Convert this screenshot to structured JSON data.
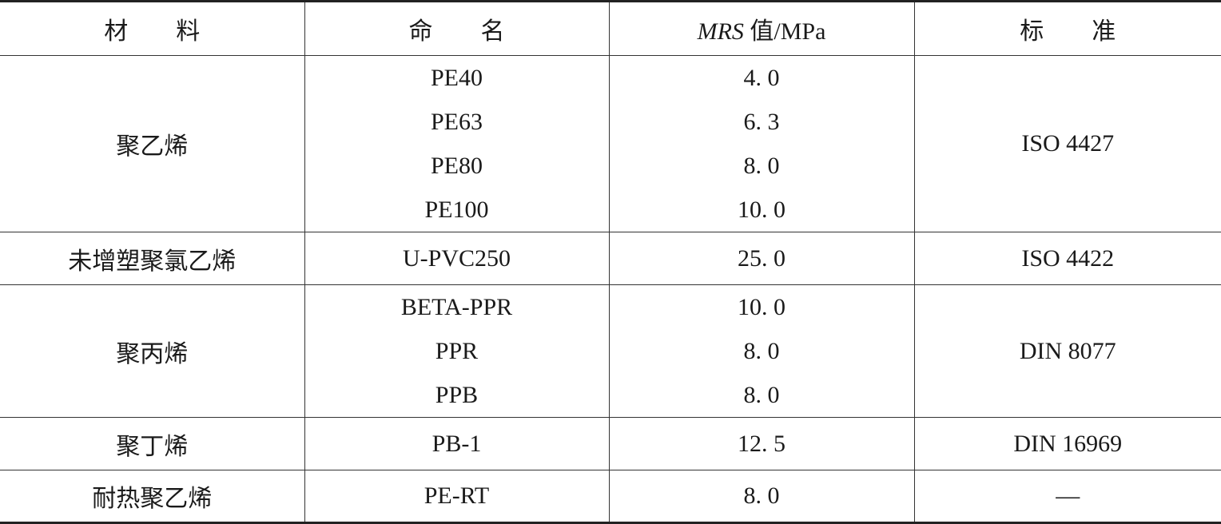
{
  "headers": {
    "material": "材　　料",
    "name": "命　　名",
    "mrs_italic": "MRS",
    "mrs_rest": " 值/MPa",
    "standard": "标　　准"
  },
  "rows": [
    {
      "material": "聚乙烯",
      "names": [
        "PE40",
        "PE63",
        "PE80",
        "PE100"
      ],
      "values": [
        "4. 0",
        "6. 3",
        "8. 0",
        "10. 0"
      ],
      "standard": "ISO 4427"
    },
    {
      "material": "未增塑聚氯乙烯",
      "names": [
        "U-PVC250"
      ],
      "values": [
        "25. 0"
      ],
      "standard": "ISO 4422"
    },
    {
      "material": "聚丙烯",
      "names": [
        "BETA-PPR",
        "PPR",
        "PPB"
      ],
      "values": [
        "10. 0",
        "8. 0",
        "8. 0"
      ],
      "standard": "DIN 8077"
    },
    {
      "material": "聚丁烯",
      "names": [
        "PB-1"
      ],
      "values": [
        "12. 5"
      ],
      "standard": "DIN 16969"
    },
    {
      "material": "耐热聚乙烯",
      "names": [
        "PE-RT"
      ],
      "values": [
        "8. 0"
      ],
      "standard": "—"
    }
  ]
}
